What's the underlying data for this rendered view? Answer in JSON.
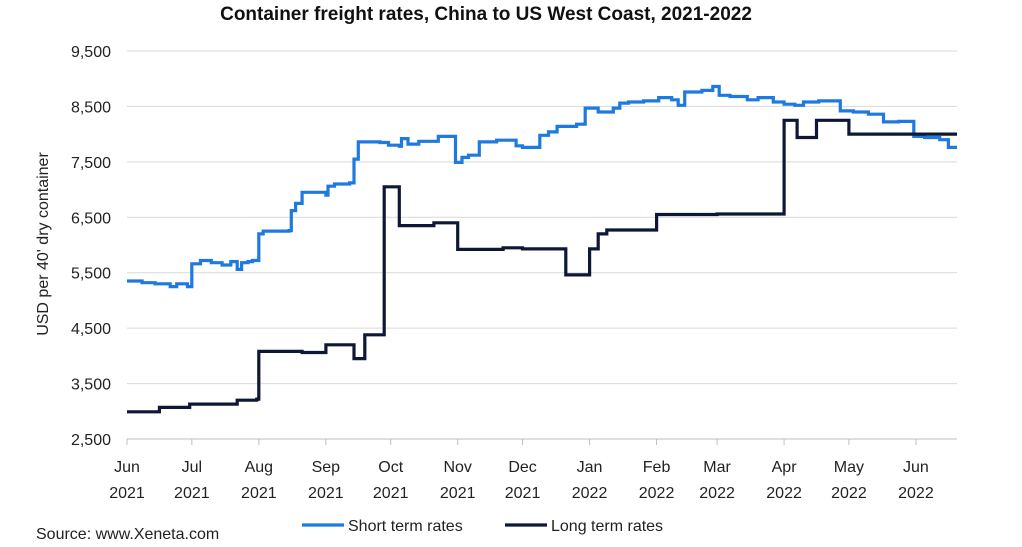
{
  "chart_data": {
    "type": "line",
    "title": "Container freight rates, China to US West Coast, 2021-2022",
    "ylabel": "USD per 40' dry container",
    "xlabel": "",
    "ylim": [
      2500,
      9500
    ],
    "yticks": [
      "2,500",
      "3,500",
      "4,500",
      "5,500",
      "6,500",
      "7,500",
      "8,500",
      "9,500"
    ],
    "ytick_values": [
      2500,
      3500,
      4500,
      5500,
      6500,
      7500,
      8500,
      9500
    ],
    "xlim": [
      "2021-06-01",
      "2022-06-20"
    ],
    "xticks": [
      {
        "month": "Jun",
        "year": "2021",
        "date": "2021-06-01"
      },
      {
        "month": "Jul",
        "year": "2021",
        "date": "2021-07-01"
      },
      {
        "month": "Aug",
        "year": "2021",
        "date": "2021-08-01"
      },
      {
        "month": "Sep",
        "year": "2021",
        "date": "2021-09-01"
      },
      {
        "month": "Oct",
        "year": "2021",
        "date": "2021-10-01"
      },
      {
        "month": "Nov",
        "year": "2021",
        "date": "2021-11-01"
      },
      {
        "month": "Dec",
        "year": "2021",
        "date": "2021-12-01"
      },
      {
        "month": "Jan",
        "year": "2022",
        "date": "2022-01-01"
      },
      {
        "month": "Feb",
        "year": "2022",
        "date": "2022-02-01"
      },
      {
        "month": "Mar",
        "year": "2022",
        "date": "2022-03-01"
      },
      {
        "month": "Apr",
        "year": "2022",
        "date": "2022-04-01"
      },
      {
        "month": "May",
        "year": "2022",
        "date": "2022-05-01"
      },
      {
        "month": "Jun",
        "year": "2022",
        "date": "2022-06-01"
      }
    ],
    "grid": "horizontal",
    "legend_position": "bottom",
    "series": [
      {
        "name": "Short term rates",
        "color": "#1f7ae0",
        "step": true,
        "points": [
          [
            "2021-06-01",
            5350
          ],
          [
            "2021-06-08",
            5320
          ],
          [
            "2021-06-14",
            5300
          ],
          [
            "2021-06-21",
            5250
          ],
          [
            "2021-06-24",
            5300
          ],
          [
            "2021-06-29",
            5250
          ],
          [
            "2021-07-01",
            5660
          ],
          [
            "2021-07-05",
            5720
          ],
          [
            "2021-07-10",
            5680
          ],
          [
            "2021-07-15",
            5640
          ],
          [
            "2021-07-19",
            5700
          ],
          [
            "2021-07-22",
            5560
          ],
          [
            "2021-07-24",
            5680
          ],
          [
            "2021-07-27",
            5700
          ],
          [
            "2021-07-29",
            5720
          ],
          [
            "2021-08-01",
            6200
          ],
          [
            "2021-08-03",
            6250
          ],
          [
            "2021-08-15",
            6260
          ],
          [
            "2021-08-16",
            6620
          ],
          [
            "2021-08-18",
            6750
          ],
          [
            "2021-08-21",
            6950
          ],
          [
            "2021-09-01",
            6900
          ],
          [
            "2021-09-02",
            7060
          ],
          [
            "2021-09-05",
            7100
          ],
          [
            "2021-09-12",
            7120
          ],
          [
            "2021-09-14",
            7550
          ],
          [
            "2021-09-16",
            7860
          ],
          [
            "2021-09-26",
            7850
          ],
          [
            "2021-09-30",
            7800
          ],
          [
            "2021-10-05",
            7780
          ],
          [
            "2021-10-06",
            7920
          ],
          [
            "2021-10-09",
            7820
          ],
          [
            "2021-10-14",
            7870
          ],
          [
            "2021-10-23",
            7960
          ],
          [
            "2021-10-31",
            7490
          ],
          [
            "2021-11-03",
            7580
          ],
          [
            "2021-11-06",
            7620
          ],
          [
            "2021-11-11",
            7860
          ],
          [
            "2021-11-19",
            7890
          ],
          [
            "2021-11-28",
            7790
          ],
          [
            "2021-12-01",
            7760
          ],
          [
            "2021-12-09",
            7980
          ],
          [
            "2021-12-13",
            8040
          ],
          [
            "2021-12-17",
            8140
          ],
          [
            "2021-12-26",
            8180
          ],
          [
            "2021-12-30",
            8470
          ],
          [
            "2022-01-05",
            8400
          ],
          [
            "2022-01-12",
            8470
          ],
          [
            "2022-01-15",
            8560
          ],
          [
            "2022-01-19",
            8580
          ],
          [
            "2022-01-26",
            8600
          ],
          [
            "2022-02-02",
            8660
          ],
          [
            "2022-02-08",
            8620
          ],
          [
            "2022-02-11",
            8520
          ],
          [
            "2022-02-14",
            8760
          ],
          [
            "2022-02-22",
            8790
          ],
          [
            "2022-02-27",
            8860
          ],
          [
            "2022-03-02",
            8700
          ],
          [
            "2022-03-07",
            8680
          ],
          [
            "2022-03-15",
            8620
          ],
          [
            "2022-03-20",
            8660
          ],
          [
            "2022-03-27",
            8580
          ],
          [
            "2022-04-01",
            8540
          ],
          [
            "2022-04-06",
            8520
          ],
          [
            "2022-04-10",
            8580
          ],
          [
            "2022-04-17",
            8600
          ],
          [
            "2022-04-27",
            8420
          ],
          [
            "2022-05-03",
            8400
          ],
          [
            "2022-05-10",
            8360
          ],
          [
            "2022-05-17",
            8220
          ],
          [
            "2022-05-24",
            8230
          ],
          [
            "2022-05-31",
            7960
          ],
          [
            "2022-06-05",
            7940
          ],
          [
            "2022-06-12",
            7900
          ],
          [
            "2022-06-16",
            7760
          ],
          [
            "2022-06-20",
            7760
          ]
        ]
      },
      {
        "name": "Long term rates",
        "color": "#0e1836",
        "step": true,
        "points": [
          [
            "2021-06-01",
            2990
          ],
          [
            "2021-06-16",
            3070
          ],
          [
            "2021-06-30",
            3130
          ],
          [
            "2021-07-22",
            3200
          ],
          [
            "2021-07-31",
            3220
          ],
          [
            "2021-08-01",
            4080
          ],
          [
            "2021-08-21",
            4060
          ],
          [
            "2021-09-01",
            4200
          ],
          [
            "2021-09-14",
            3950
          ],
          [
            "2021-09-19",
            4380
          ],
          [
            "2021-09-28",
            7050
          ],
          [
            "2021-10-05",
            6350
          ],
          [
            "2021-10-21",
            6400
          ],
          [
            "2021-11-01",
            5920
          ],
          [
            "2021-11-22",
            5950
          ],
          [
            "2021-12-01",
            5930
          ],
          [
            "2021-12-21",
            5460
          ],
          [
            "2022-01-01",
            5930
          ],
          [
            "2022-01-05",
            6200
          ],
          [
            "2022-01-09",
            6270
          ],
          [
            "2022-02-01",
            6550
          ],
          [
            "2022-03-01",
            6560
          ],
          [
            "2022-04-01",
            8250
          ],
          [
            "2022-04-07",
            7940
          ],
          [
            "2022-04-16",
            8250
          ],
          [
            "2022-05-01",
            8000
          ],
          [
            "2022-06-20",
            8000
          ]
        ]
      }
    ],
    "source": "Source: www.Xeneta.com"
  }
}
